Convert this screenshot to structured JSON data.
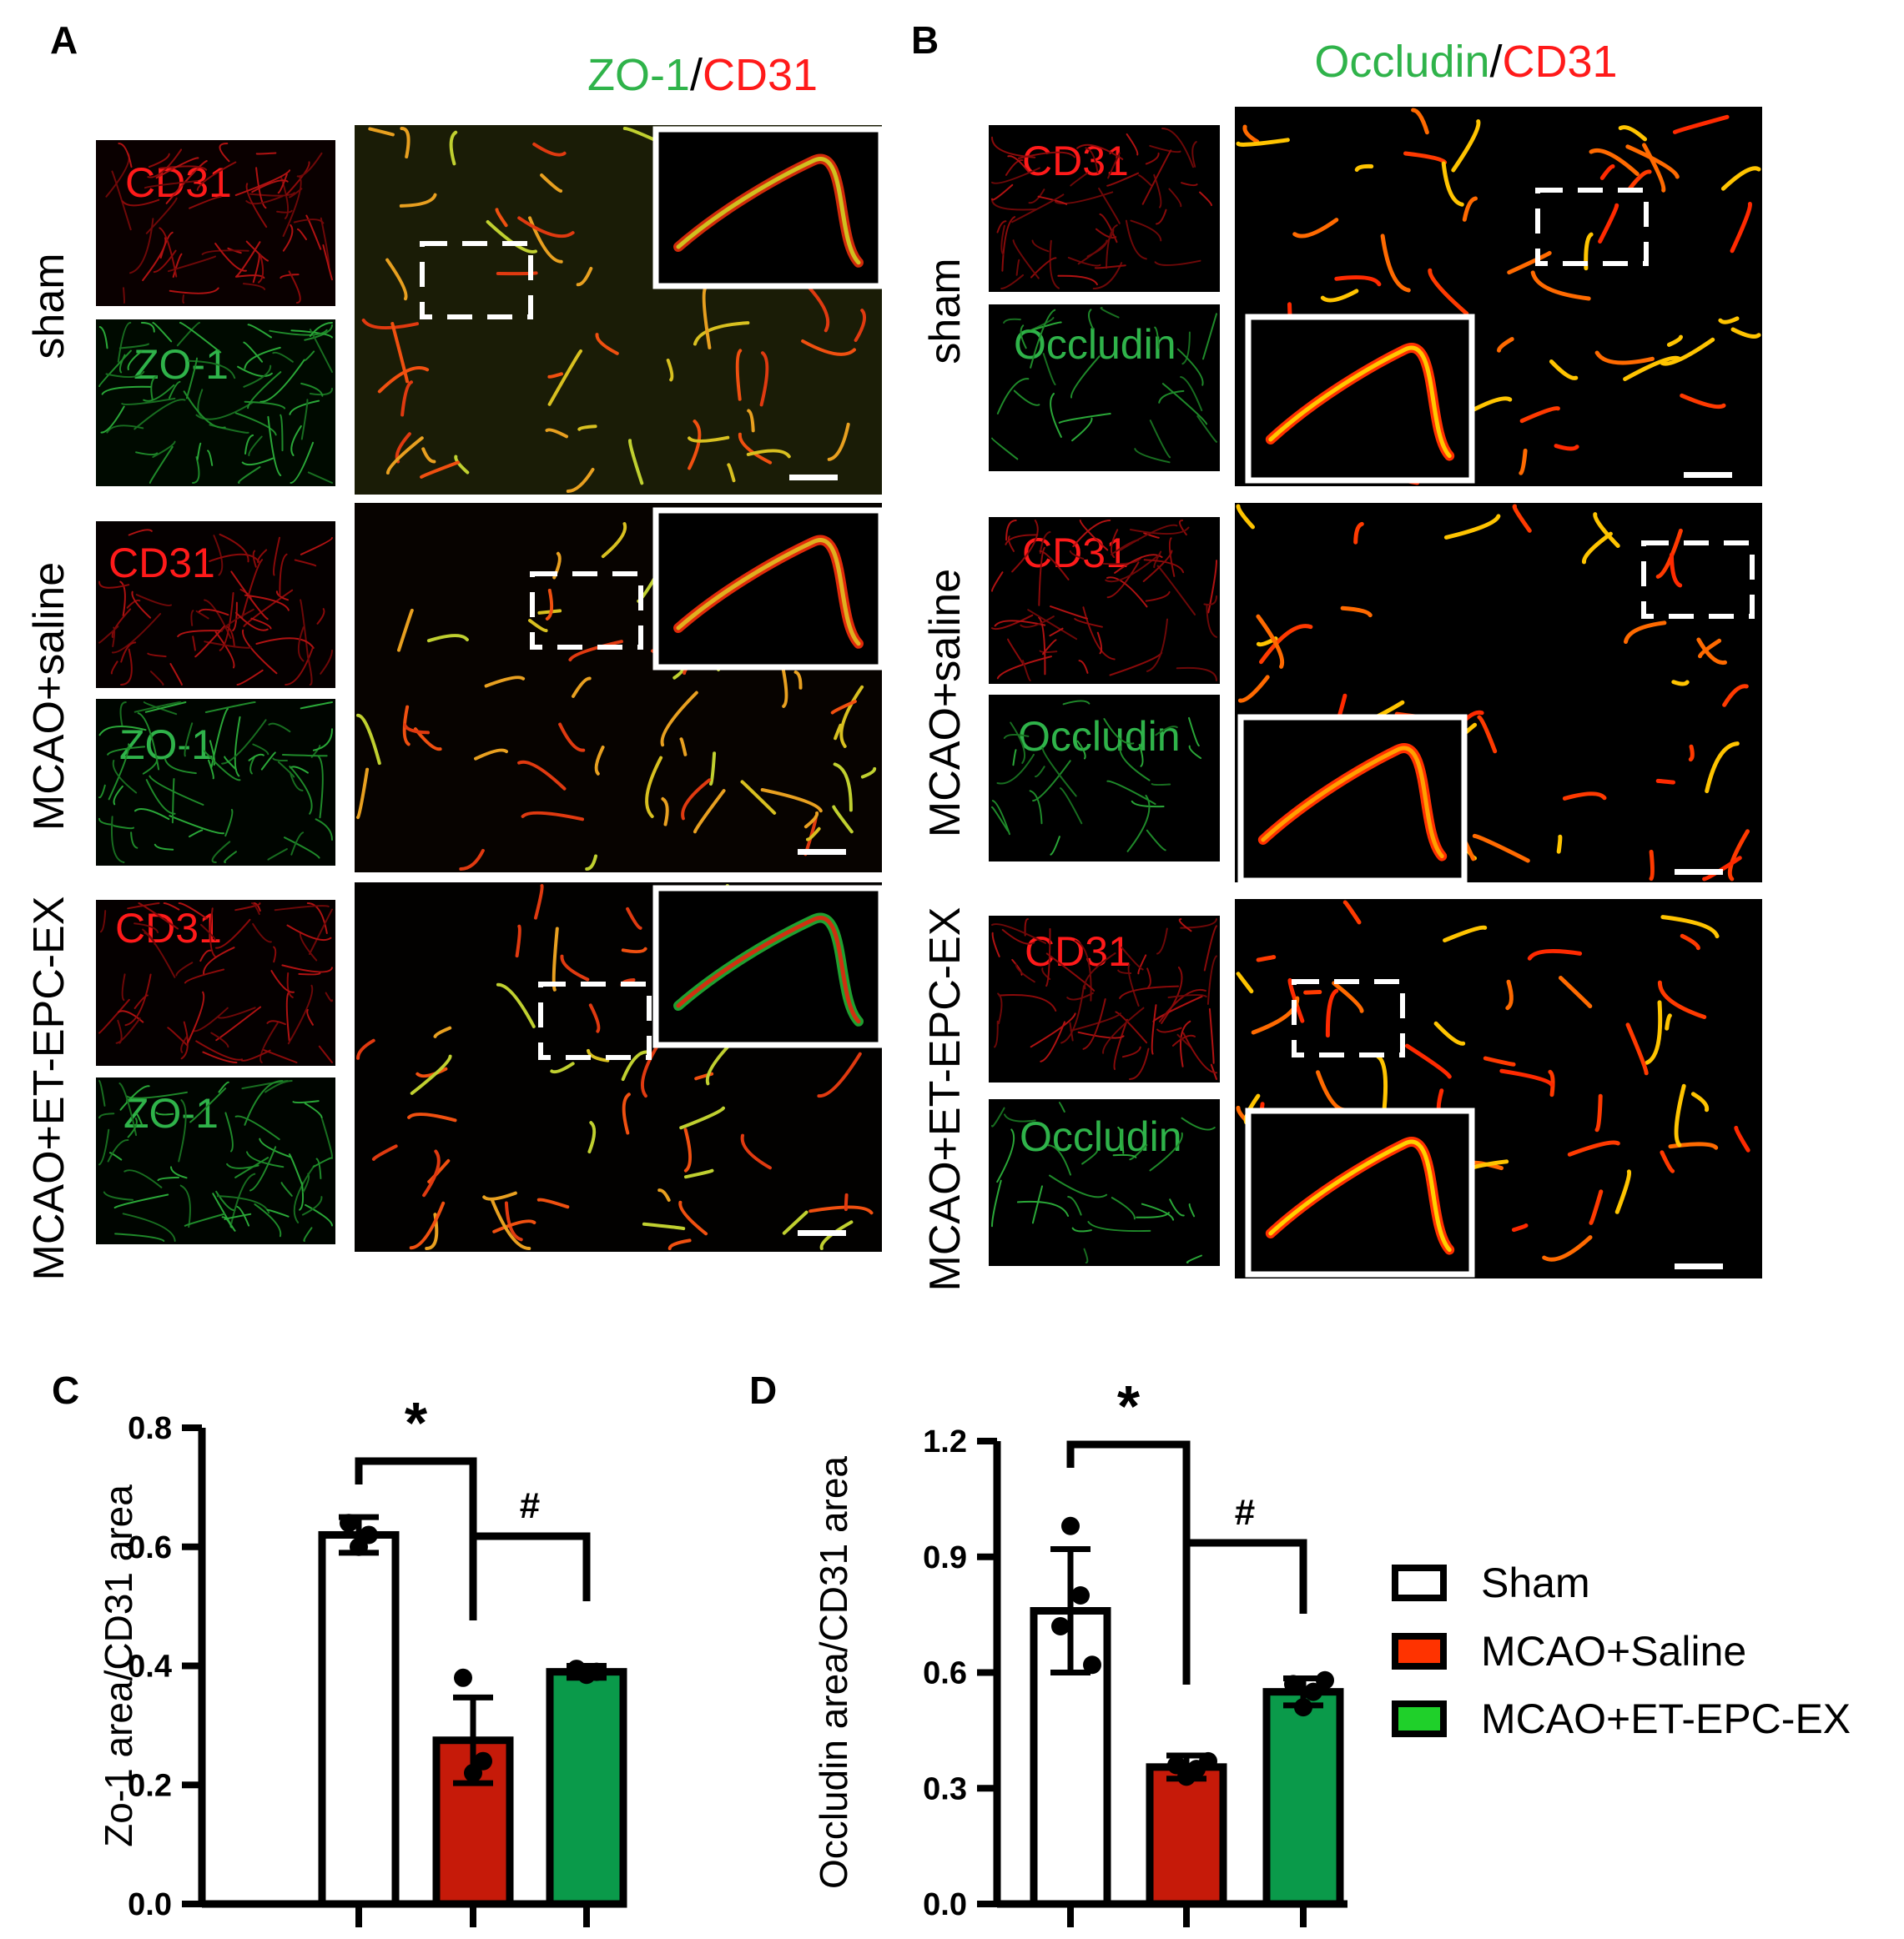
{
  "panels": {
    "A": {
      "label": "A",
      "title_green": "ZO-1",
      "title_sep": "/",
      "title_red": "CD31",
      "rows": [
        "sham",
        "MCAO+saline",
        "MCAO+ET-EPC-EX"
      ],
      "channel_red": "CD31",
      "channel_green": "ZO-1"
    },
    "B": {
      "label": "B",
      "title_green": "Occludin",
      "title_sep": "/",
      "title_red": "CD31",
      "rows": [
        "sham",
        "MCAO+saline",
        "MCAO+ET-EPC-EX"
      ],
      "channel_red": "CD31",
      "channel_green": "Occludin"
    },
    "C": {
      "label": "C"
    },
    "D": {
      "label": "D"
    }
  },
  "colors": {
    "green_label": "#2fb34a",
    "red_label": "#ff1a1a",
    "sham": "#ffffff",
    "mcao_saline": "#c61a09",
    "mcao_et_epc_ex": "#0a9a4a"
  },
  "legend": {
    "placement": "right",
    "items": [
      "Sham",
      "MCAO+Saline",
      "MCAO+ET-EPC-EX"
    ]
  },
  "chart_data": [
    {
      "type": "bar",
      "panel": "C",
      "categories": [
        "Sham",
        "MCAO+Saline",
        "MCAO+ET-EPC-EX"
      ],
      "values": [
        0.62,
        0.275,
        0.39
      ],
      "errors": [
        0.03,
        0.072,
        0.01
      ],
      "points": [
        [
          0.6,
          0.62,
          0.64
        ],
        [
          0.22,
          0.24,
          0.38
        ],
        [
          0.385,
          0.39,
          0.395
        ]
      ],
      "ylabel": "Zo-1 area/CD31 area",
      "ylim": [
        0,
        0.8
      ],
      "yticks": [
        "0.0",
        "0.2",
        "0.4",
        "0.6",
        "0.8"
      ],
      "significance": [
        {
          "from": 0,
          "to": 1,
          "label": "*"
        },
        {
          "from": 1,
          "to": 2,
          "label": "#"
        }
      ]
    },
    {
      "type": "bar",
      "panel": "D",
      "categories": [
        "Sham",
        "MCAO+Saline",
        "MCAO+ET-EPC-EX"
      ],
      "values": [
        0.76,
        0.355,
        0.55
      ],
      "errors": [
        0.16,
        0.03,
        0.035
      ],
      "points": [
        [
          0.98,
          0.8,
          0.72,
          0.62
        ],
        [
          0.33,
          0.35,
          0.36,
          0.37
        ],
        [
          0.51,
          0.55,
          0.57,
          0.58
        ]
      ],
      "ylabel": "Occludin area/CD31 area",
      "ylim": [
        0,
        1.2
      ],
      "yticks": [
        "0.0",
        "0.3",
        "0.6",
        "0.9",
        "1.2"
      ],
      "significance": [
        {
          "from": 0,
          "to": 1,
          "label": "*"
        },
        {
          "from": 1,
          "to": 2,
          "label": "#"
        }
      ]
    }
  ]
}
